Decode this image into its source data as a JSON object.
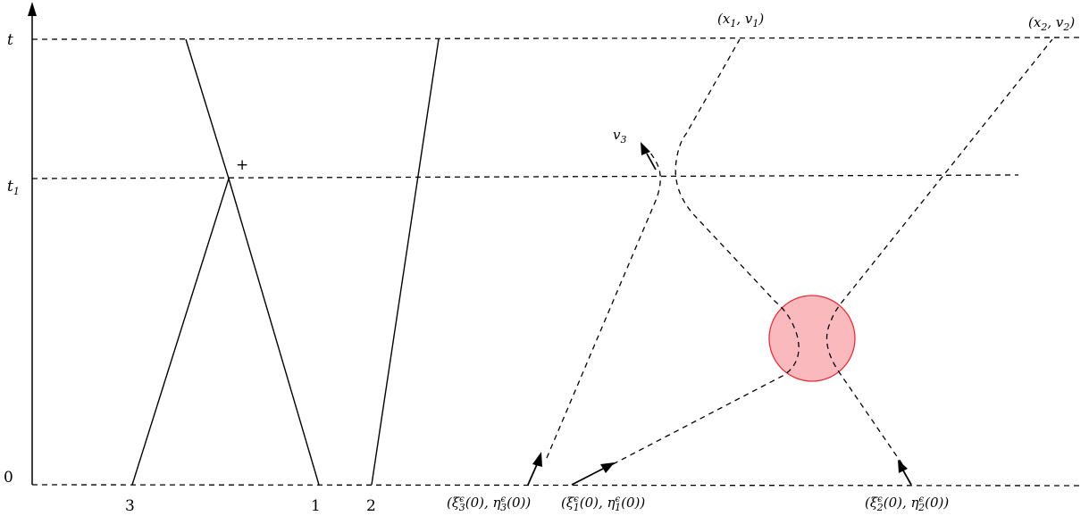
{
  "axis": {
    "time_labels": {
      "t": "t",
      "t1_main": "t",
      "t1_sub": "1",
      "zero": "0"
    }
  },
  "bottom_labels": {
    "p3": "3",
    "p1": "1",
    "p2": "2"
  },
  "annotations": {
    "plus": "+",
    "v3_main": "v",
    "v3_sub": "3"
  },
  "endpoints": {
    "x1v1": {
      "open": "(x",
      "s1": "1",
      "mid": ", v",
      "s2": "1",
      "close": ")"
    },
    "x2v2": {
      "open": "(x",
      "s1": "2",
      "mid": ", v",
      "s2": "2",
      "close": ")"
    }
  },
  "initial": {
    "p3": {
      "a": "(ξ",
      "a_sup": "ϵ",
      "a_sub": "3",
      "b": "(0), η",
      "b_sup": "ϵ",
      "b_sub": "3",
      "c": "(0))"
    },
    "p1": {
      "a": "(ξ",
      "a_sup": "ϵ",
      "a_sub": "1",
      "b": "(0), η",
      "b_sup": "ϵ",
      "b_sub": "1",
      "c": "(0))"
    },
    "p2": {
      "a": "(ξ",
      "a_sup": "ϵ",
      "a_sub": "2",
      "b": "(0), η",
      "b_sup": "ϵ",
      "b_sub": "2",
      "c": "(0))"
    }
  },
  "colors": {
    "collision_fill": "#f9b9bd",
    "collision_stroke": "#e5303a",
    "ink": "#000000"
  }
}
